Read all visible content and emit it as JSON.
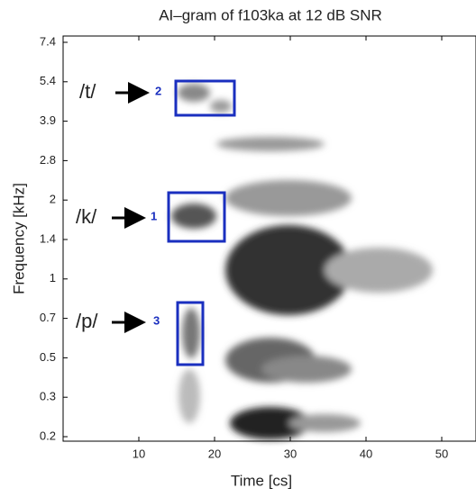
{
  "chart_data": {
    "type": "heatmap",
    "title": "AI–gram of f103ka at 12 dB SNR",
    "x_label": "Time [cs]",
    "y_label": "Frequency [kHz]",
    "xlim": [
      0,
      55
    ],
    "xticks": [
      10,
      20,
      30,
      40,
      50
    ],
    "yticks": [
      0.2,
      0.3,
      0.5,
      0.7,
      1,
      1.4,
      2,
      2.8,
      3.9,
      5.4,
      7.4
    ],
    "y_scale": "tick-spaced",
    "annotations": [
      {
        "label": "/t/",
        "number": 2
      },
      {
        "label": "/k/",
        "number": 1
      },
      {
        "label": "/p/",
        "number": 3
      }
    ]
  }
}
